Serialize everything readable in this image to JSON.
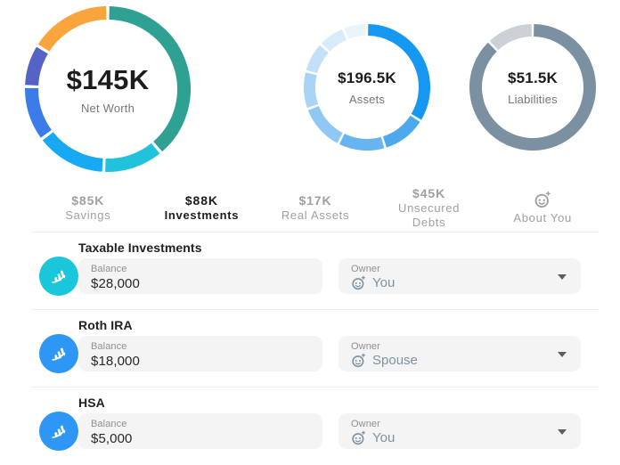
{
  "chart_data": [
    {
      "type": "pie",
      "subtype": "donut",
      "center_value": "$145K",
      "center_label": "Net Worth",
      "values_pct": [
        38.9,
        11.9,
        13.9,
        10.8,
        8.3,
        16.2
      ],
      "colors": [
        "#2fa193",
        "#21c2dc",
        "#17a9f3",
        "#3b7ce9",
        "#5562c6",
        "#f9a43c"
      ],
      "legend": false
    },
    {
      "type": "pie",
      "subtype": "donut",
      "center_value": "$196.5K",
      "center_label": "Assets",
      "values_pct": [
        33.9,
        11.4,
        12.2,
        11.9,
        9.7,
        7.8,
        6.9,
        6.2
      ],
      "colors": [
        "#1697f0",
        "#4da9ee",
        "#66b5f0",
        "#90c7f3",
        "#aad4f6",
        "#c3e0f9",
        "#d8ebfb",
        "#eaf4fd"
      ],
      "legend": false
    },
    {
      "type": "pie",
      "subtype": "donut",
      "center_value": "$51.5K",
      "center_label": "Liabilities",
      "values_pct": [
        87.8,
        12.2
      ],
      "colors": [
        "#7b90a0",
        "#cbd1d6"
      ],
      "legend": false
    }
  ],
  "tabs": {
    "items": [
      {
        "value": "$85K",
        "label": "Savings",
        "active": false
      },
      {
        "value": "$88K",
        "label": "Investments",
        "active": true
      },
      {
        "value": "$17K",
        "label": "Real Assets",
        "active": false
      },
      {
        "value": "$45K",
        "label": "Unsecured Debts",
        "active": false
      },
      {
        "value": "",
        "label": "About You",
        "active": false,
        "icon": "face-add-icon"
      }
    ]
  },
  "accounts": {
    "balance_label": "Balance",
    "owner_label": "Owner",
    "items": [
      {
        "title": "Taxable Investments",
        "balance": "$28,000",
        "owner": "You",
        "icon": "chart-trend-icon",
        "icon_color": "#19c6da"
      },
      {
        "title": "Roth IRA",
        "balance": "$18,000",
        "owner": "Spouse",
        "icon": "chart-trend-icon",
        "icon_color": "#2e96f5"
      },
      {
        "title": "HSA",
        "balance": "$5,000",
        "owner": "You",
        "icon": "chart-trend-icon",
        "icon_color": "#2e96f5"
      }
    ]
  },
  "colors": {
    "field_background": "#f4f4f5",
    "divider": "#eceef0",
    "owner_text": "#7d93a3",
    "tab_inactive": "#9da1a4",
    "tab_active": "#1b1c1e"
  }
}
